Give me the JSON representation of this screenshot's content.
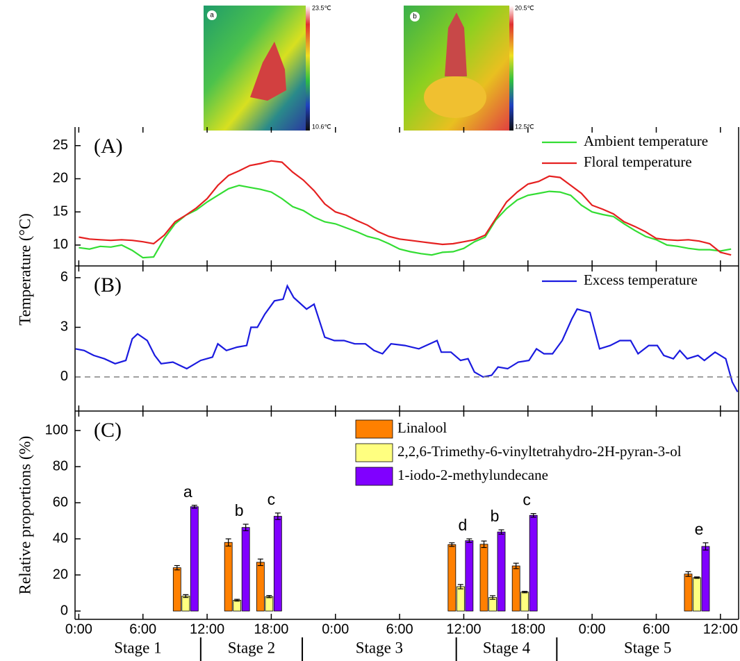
{
  "insets": [
    {
      "label": "a",
      "scale_max": "23.5℃",
      "scale_min": "10.6℃"
    },
    {
      "label": "b",
      "scale_max": "20.5℃",
      "scale_min": "12.5℃"
    }
  ],
  "chart_data": [
    {
      "type": "line",
      "panel_label": "(A)",
      "ylabel": "Temperature (°C)",
      "x": [
        0,
        1,
        2,
        3,
        4,
        5,
        6,
        7,
        8,
        9,
        10,
        11,
        12,
        13,
        14,
        15,
        16,
        17,
        18,
        19,
        20,
        21,
        22,
        23,
        24,
        25,
        26,
        27,
        28,
        29,
        30,
        31,
        32,
        33,
        34,
        35,
        36,
        37,
        38,
        39,
        40,
        41,
        42,
        43,
        44,
        45,
        46,
        47,
        48,
        49,
        50,
        51,
        52,
        53,
        54,
        55,
        56,
        57,
        58,
        59,
        60,
        61
      ],
      "series": [
        {
          "name": "Ambient temperature",
          "color": "#33dd33",
          "values": [
            9.6,
            9.4,
            9.8,
            9.7,
            10.0,
            9.2,
            8.1,
            8.2,
            11,
            13.2,
            14.5,
            15.3,
            16.5,
            17.5,
            18.5,
            19.0,
            18.7,
            18.4,
            18.0,
            17.0,
            15.8,
            15.2,
            14.2,
            13.5,
            13.2,
            12.6,
            12.0,
            11.3,
            10.9,
            10.2,
            9.4,
            9.0,
            8.7,
            8.5,
            8.9,
            9.0,
            9.5,
            10.5,
            11.2,
            13.8,
            15.5,
            16.8,
            17.5,
            17.8,
            18.1,
            18.0,
            17.5,
            16.0,
            15.0,
            14.6,
            14.3,
            13.2,
            12.2,
            11.3,
            10.8,
            10.0,
            9.8,
            9.5,
            9.3,
            9.3,
            9.1,
            9.4
          ]
        },
        {
          "name": "Floral temperature",
          "color": "#e52020",
          "values": [
            11.2,
            10.9,
            10.8,
            10.7,
            10.8,
            10.7,
            10.5,
            10.2,
            11.5,
            13.5,
            14.5,
            15.6,
            17.0,
            19.0,
            20.5,
            21.2,
            22.0,
            22.3,
            22.7,
            22.5,
            21.0,
            19.8,
            18.2,
            16.2,
            15.0,
            14.5,
            13.7,
            13.0,
            12.0,
            11.3,
            10.9,
            10.7,
            10.5,
            10.3,
            10.1,
            10.2,
            10.5,
            10.8,
            11.5,
            14.0,
            16.5,
            18.0,
            19.2,
            19.6,
            20.4,
            20.2,
            19.0,
            17.8,
            16.0,
            15.4,
            14.7,
            13.5,
            12.8,
            12.0,
            11.0,
            10.8,
            10.7,
            10.8,
            10.6,
            10.2,
            8.9,
            8.5
          ]
        }
      ],
      "xlim": [
        -0.35,
        61.7
      ],
      "ylim": [
        6.85,
        27.8
      ],
      "yticks": [
        10,
        15,
        20,
        25
      ],
      "legend": "top-right"
    },
    {
      "type": "line",
      "panel_label": "(B)",
      "x": [
        -0.3,
        0.5,
        1.4,
        2.4,
        3.4,
        4.4,
        5.0,
        5.5,
        6.4,
        7.1,
        7.7,
        8.8,
        10.1,
        11.4,
        12.5,
        13.0,
        13.8,
        14.8,
        15.7,
        16.1,
        16.7,
        17.4,
        18.3,
        19.1,
        19.5,
        20.1,
        21.3,
        22.0,
        23.0,
        23.9,
        24.8,
        25.8,
        26.8,
        27.6,
        28.4,
        29.2,
        30.5,
        31.8,
        33.5,
        33.9,
        34.8,
        35.7,
        36.4,
        37.0,
        37.8,
        38.6,
        39.2,
        40.1,
        41.1,
        42.1,
        42.8,
        43.5,
        44.3,
        45.2,
        46.1,
        46.6,
        47.8,
        48.7,
        49.7,
        50.6,
        51.6,
        52.3,
        53.3,
        54.1,
        54.7,
        55.6,
        56.2,
        56.9,
        57.9,
        58.5,
        59.5,
        60.5,
        61.1,
        61.6
      ],
      "series": [
        {
          "name": "Excess temperature",
          "color": "#1a1adf",
          "values": [
            1.7,
            1.6,
            1.3,
            1.1,
            0.8,
            1.0,
            2.3,
            2.6,
            2.2,
            1.3,
            0.8,
            0.9,
            0.5,
            1.0,
            1.2,
            2.0,
            1.6,
            1.8,
            1.9,
            3.0,
            3.0,
            3.8,
            4.6,
            4.7,
            5.5,
            4.8,
            4.1,
            4.4,
            2.4,
            2.2,
            2.2,
            2.0,
            2.0,
            1.6,
            1.4,
            2.0,
            1.9,
            1.7,
            2.2,
            1.5,
            1.5,
            1.0,
            1.1,
            0.3,
            0.0,
            0.1,
            0.6,
            0.5,
            0.9,
            1.0,
            1.7,
            1.4,
            1.4,
            2.2,
            3.5,
            4.1,
            3.9,
            1.7,
            1.9,
            2.2,
            2.2,
            1.4,
            1.9,
            1.9,
            1.3,
            1.1,
            1.6,
            1.1,
            1.3,
            1.0,
            1.5,
            1.1,
            -0.3,
            -0.9
          ]
        }
      ],
      "xlim": [
        -0.35,
        61.7
      ],
      "ylim": [
        -2.06,
        6.71
      ],
      "yticks": [
        0,
        3,
        6
      ],
      "hline": 0,
      "legend": "top-right"
    },
    {
      "type": "bar",
      "panel_label": "(C)",
      "ylabel": "Relative proportions (%)",
      "x": [
        10.0,
        14.8,
        17.8,
        35.7,
        38.7,
        41.7,
        57.8
      ],
      "group_labels": [
        "a",
        "b",
        "c",
        "d",
        "b",
        "c",
        "e"
      ],
      "series": [
        {
          "name": "Linalool",
          "color": "#ff8000",
          "values": [
            24,
            38,
            27,
            36.8,
            37,
            25,
            20.5
          ],
          "errors": [
            1.2,
            2,
            1.8,
            1,
            1.8,
            1.5,
            1.3
          ]
        },
        {
          "name": "2,2,6-Trimethy-6-vinyltetrahydro-2H-pyran-3-ol",
          "color": "#ffff80",
          "values": [
            8.3,
            6,
            8,
            13.5,
            7.5,
            10.5,
            18.5
          ],
          "errors": [
            0.8,
            0.5,
            0.6,
            1.2,
            1,
            0.4,
            0.4
          ]
        },
        {
          "name": "1-iodo-2-methylundecane",
          "color": "#8000ff",
          "values": [
            57.8,
            46.3,
            52.5,
            39,
            43.8,
            53,
            35.8
          ],
          "errors": [
            0.8,
            1.8,
            1.8,
            1,
            1.2,
            1,
            2
          ]
        }
      ],
      "xlim": [
        -0.35,
        61.7
      ],
      "ylim": [
        -4.6,
        110.8
      ],
      "yticks": [
        0,
        20,
        40,
        60,
        80,
        100
      ],
      "xticks": [
        {
          "value": 0,
          "label": "0:00"
        },
        {
          "value": 6,
          "label": "6:00"
        },
        {
          "value": 12,
          "label": "12:00"
        },
        {
          "value": 18,
          "label": "18:00"
        },
        {
          "value": 24,
          "label": "0:00"
        },
        {
          "value": 30,
          "label": "6:00"
        },
        {
          "value": 36,
          "label": "12:00"
        },
        {
          "value": 42,
          "label": "18:00"
        },
        {
          "value": 48,
          "label": "0:00"
        },
        {
          "value": 54,
          "label": "6:00"
        },
        {
          "value": 60,
          "label": "12:00"
        }
      ],
      "stages": [
        "Stage 1",
        "Stage 2",
        "Stage 3",
        "Stage 4",
        "Stage 5"
      ],
      "stage_bounds": [
        11.4,
        20.9,
        35.3,
        44.7
      ],
      "legend": "top-center"
    }
  ]
}
